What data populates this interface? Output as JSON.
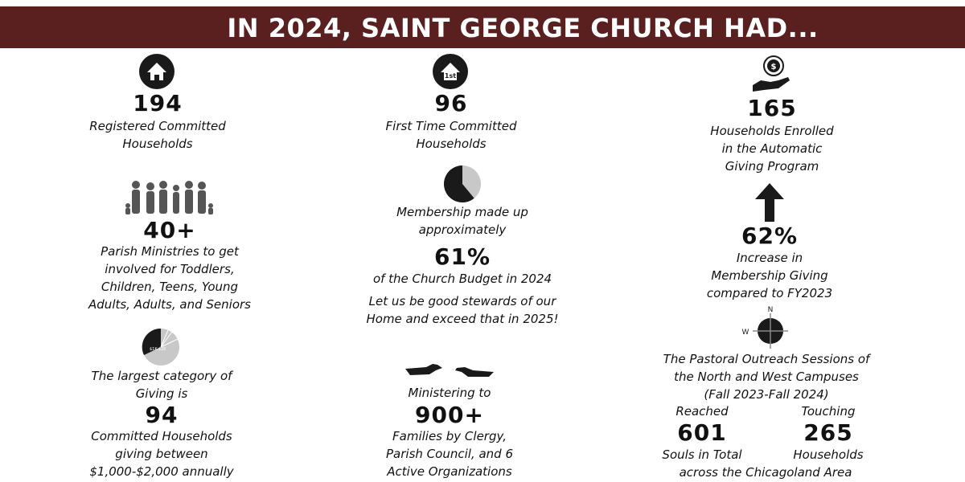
{
  "title": "IN 2024, SAINT GEORGE CHURCH HAD...",
  "colors": {
    "banner": "#5a1f1f",
    "text": "#111111",
    "icon": "#1a1a1a",
    "icon_light": "#c8c8c8"
  },
  "stats": {
    "registered": {
      "value": "194",
      "label": "Registered Committed\nHouseholds",
      "icon": "house-icon"
    },
    "ministries": {
      "value": "40+",
      "label": "Parish Ministries to get\ninvolved for Toddlers,\nChildren, Teens, Young\nAdults, Adults, and Seniors",
      "icon": "family-group-icon"
    },
    "giving_category": {
      "intro": "The largest category of\nGiving is",
      "value": "94",
      "label": "Committed Households\ngiving between\n$1,000-$2,000 annually",
      "icon": "giving-pie-icon",
      "pie_label": "$1K-$2K"
    },
    "first_time": {
      "value": "96",
      "label": "First Time Committed\nHouseholds",
      "icon": "first-home-icon",
      "icon_text": "1st"
    },
    "membership": {
      "intro": "Membership made up\napproximately",
      "value": "61%",
      "label": "of the Church Budget in 2024",
      "fraction": 0.61,
      "icon": "pie-chart-icon",
      "note": "Let us be good stewards of our\nHome and exceed that in 2025!"
    },
    "ministering": {
      "intro": "Ministering to",
      "value": "900+",
      "label": "Families by Clergy,\nParish Council, and 6\nActive Organizations",
      "icon": "reaching-hands-icon"
    },
    "automatic": {
      "value": "165",
      "label": "Households Enrolled\nin the Automatic\nGiving Program",
      "icon": "hand-coin-icon"
    },
    "increase": {
      "value": "62%",
      "label": "Increase in\nMembership Giving\ncompared to FY2023",
      "icon": "up-arrow-icon"
    },
    "outreach": {
      "icon": "compass-icon",
      "compass_n": "N",
      "compass_w": "W",
      "title": "The Pastoral Outreach Sessions of\nthe North and West Campuses\n(Fall 2023-Fall 2024)",
      "reached_label": "Reached",
      "reached_value": "601",
      "reached_unit": "Souls in Total",
      "touching_label": "Touching",
      "touching_value": "265",
      "touching_unit": "Households",
      "area": "across the Chicagoland Area"
    }
  }
}
